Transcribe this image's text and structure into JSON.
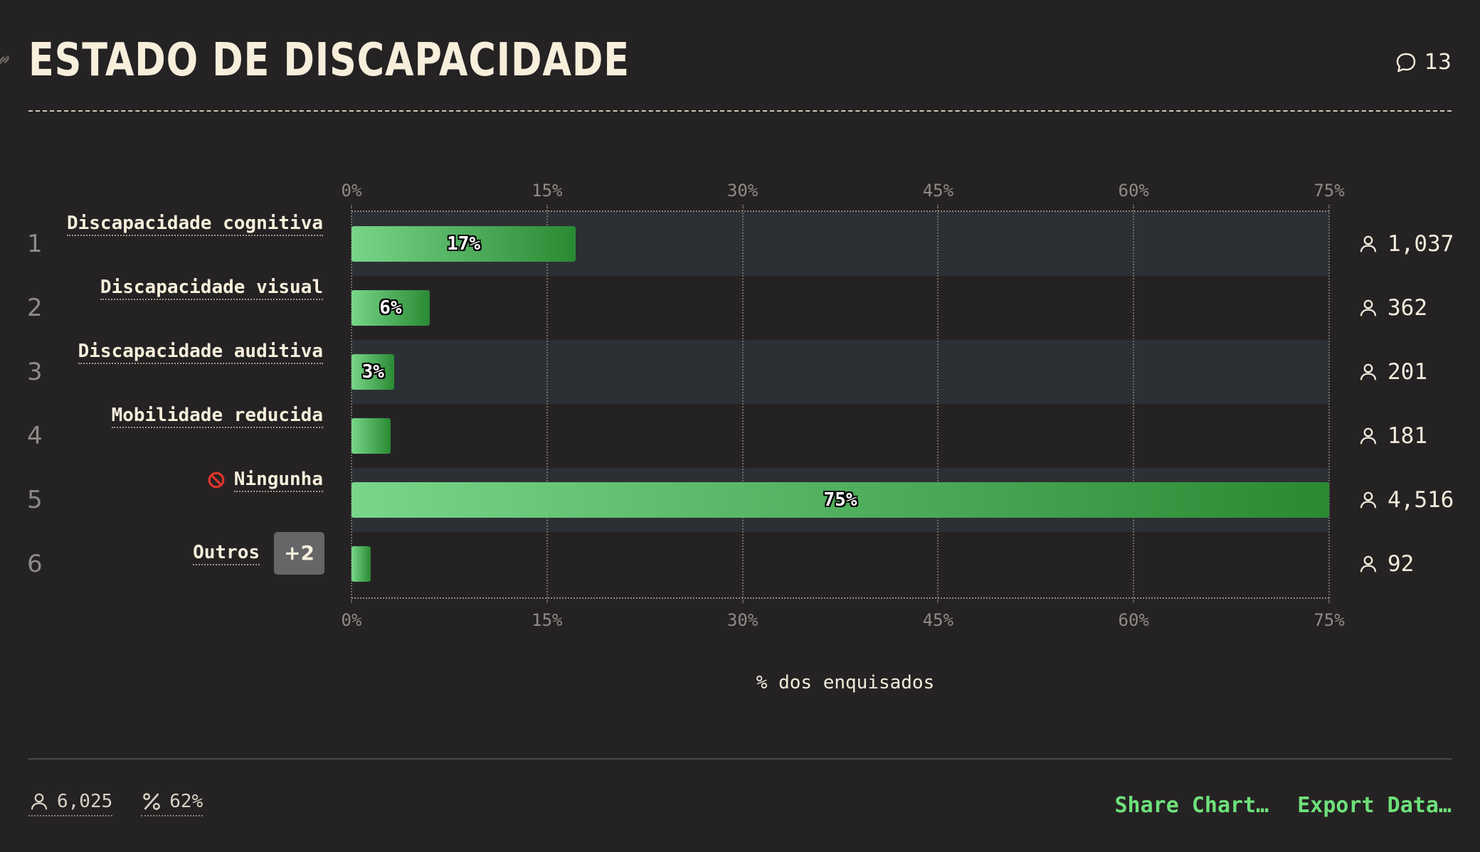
{
  "title": "ESTADO DE DISCAPACIDADE",
  "comments_count": "13",
  "chart_data": {
    "type": "bar",
    "orientation": "horizontal",
    "title": "ESTADO DE DISCAPACIDADE",
    "xlabel": "% dos enquisados",
    "xlim": [
      0,
      75
    ],
    "xticks": [
      "0%",
      "15%",
      "30%",
      "45%",
      "60%",
      "75%"
    ],
    "xtick_values": [
      0,
      15,
      30,
      45,
      60,
      75
    ],
    "categories": [
      "Discapacidade cognitiva",
      "Discapacidade visual",
      "Discapacidade auditiva",
      "Mobilidade reducida",
      "Ningunha",
      "Outros"
    ],
    "ranks": [
      "1",
      "2",
      "3",
      "4",
      "5",
      "6"
    ],
    "values": [
      17.2,
      6.0,
      3.3,
      3.0,
      75.0,
      1.5
    ],
    "value_labels": [
      "17%",
      "6%",
      "3%",
      "",
      "75%",
      ""
    ],
    "counts": [
      "1,037",
      "362",
      "201",
      "181",
      "4,516",
      "92"
    ],
    "others_badge": "+2",
    "bar_color_start": "#78d689",
    "bar_color_end": "#2a8a33"
  },
  "footer": {
    "respondents": "6,025",
    "percent": "62%",
    "share_label": "Share Chart…",
    "export_label": "Export Data…"
  },
  "colors": {
    "background": "#252223",
    "accent": "#6ee07a",
    "band": "#2b3034"
  }
}
